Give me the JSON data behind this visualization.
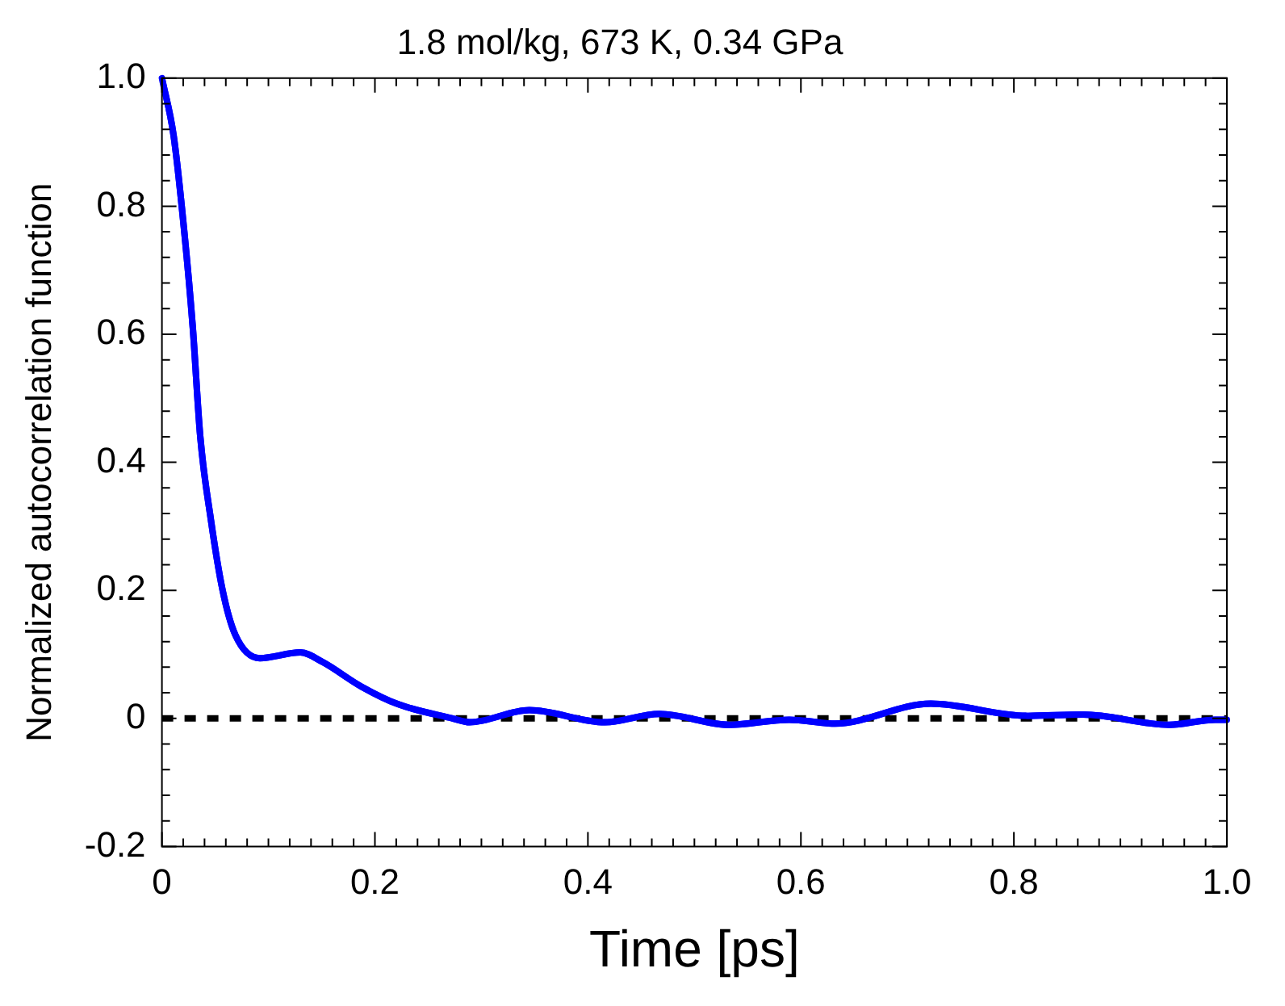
{
  "chart_data": {
    "type": "line",
    "title": "1.8 mol/kg, 673 K, 0.34 GPa",
    "xlabel": "Time [ps]",
    "ylabel": "Normalized autocorrelation function",
    "x": [
      0,
      0.011,
      0.021,
      0.029,
      0.036,
      0.046,
      0.057,
      0.069,
      0.092,
      0.13,
      0.151,
      0.187,
      0.222,
      0.273,
      0.289,
      0.345,
      0.416,
      0.467,
      0.533,
      0.589,
      0.632,
      0.722,
      0.813,
      0.865,
      0.946,
      0.989,
      1.0
    ],
    "series": [
      {
        "color": "#0000ff",
        "values": [
          1.0,
          0.91,
          0.76,
          0.61,
          0.44,
          0.31,
          0.2,
          0.13,
          0.094,
          0.103,
          0.088,
          0.05,
          0.022,
          0.0,
          -0.006,
          0.013,
          -0.006,
          0.007,
          -0.01,
          -0.002,
          -0.008,
          0.023,
          0.004,
          0.006,
          -0.01,
          -0.002,
          -0.002
        ]
      }
    ],
    "xlim": [
      0,
      1.0
    ],
    "ylim": [
      -0.2,
      1.0
    ],
    "xticks": [
      0,
      {
        "value": 0.02,
        "label": null
      },
      {
        "value": 0.04,
        "label": null
      },
      {
        "value": 0.06,
        "label": null
      },
      {
        "value": 0.08,
        "label": null
      },
      {
        "value": 0.1,
        "label": null
      },
      {
        "value": 0.12,
        "label": null
      },
      {
        "value": 0.14,
        "label": null
      },
      {
        "value": 0.16,
        "label": null
      },
      {
        "value": 0.18,
        "label": null
      },
      0.2,
      {
        "value": 0.22,
        "label": null
      },
      {
        "value": 0.24,
        "label": null
      },
      {
        "value": 0.26,
        "label": null
      },
      {
        "value": 0.28,
        "label": null
      },
      {
        "value": 0.3,
        "label": null
      },
      {
        "value": 0.32,
        "label": null
      },
      {
        "value": 0.34,
        "label": null
      },
      {
        "value": 0.36,
        "label": null
      },
      {
        "value": 0.38,
        "label": null
      },
      0.4,
      {
        "value": 0.42,
        "label": null
      },
      {
        "value": 0.44,
        "label": null
      },
      {
        "value": 0.46,
        "label": null
      },
      {
        "value": 0.48,
        "label": null
      },
      {
        "value": 0.5,
        "label": null
      },
      {
        "value": 0.52,
        "label": null
      },
      {
        "value": 0.54,
        "label": null
      },
      {
        "value": 0.56,
        "label": null
      },
      {
        "value": 0.58,
        "label": null
      },
      0.6,
      {
        "value": 0.62,
        "label": null
      },
      {
        "value": 0.64,
        "label": null
      },
      {
        "value": 0.66,
        "label": null
      },
      {
        "value": 0.68,
        "label": null
      },
      {
        "value": 0.7,
        "label": null
      },
      {
        "value": 0.72,
        "label": null
      },
      {
        "value": 0.74,
        "label": null
      },
      {
        "value": 0.76,
        "label": null
      },
      {
        "value": 0.78,
        "label": null
      },
      0.8,
      {
        "value": 0.82,
        "label": null
      },
      {
        "value": 0.84,
        "label": null
      },
      {
        "value": 0.86,
        "label": null
      },
      {
        "value": 0.88,
        "label": null
      },
      {
        "value": 0.9,
        "label": null
      },
      {
        "value": 0.92,
        "label": null
      },
      {
        "value": 0.94,
        "label": null
      },
      {
        "value": 0.96,
        "label": null
      },
      {
        "value": 0.98,
        "label": null
      },
      {
        "value": 1.0,
        "label": "1.0"
      }
    ],
    "yticks": [
      -0.2,
      {
        "value": -0.16,
        "label": null
      },
      {
        "value": -0.12,
        "label": null
      },
      {
        "value": -0.08,
        "label": null
      },
      {
        "value": -0.04,
        "label": null
      },
      0,
      {
        "value": 0.04,
        "label": null
      },
      {
        "value": 0.08,
        "label": null
      },
      {
        "value": 0.12,
        "label": null
      },
      {
        "value": 0.16,
        "label": null
      },
      0.2,
      {
        "value": 0.24,
        "label": null
      },
      {
        "value": 0.28,
        "label": null
      },
      {
        "value": 0.32,
        "label": null
      },
      {
        "value": 0.36,
        "label": null
      },
      0.4,
      {
        "value": 0.44,
        "label": null
      },
      {
        "value": 0.48,
        "label": null
      },
      {
        "value": 0.52,
        "label": null
      },
      {
        "value": 0.56,
        "label": null
      },
      0.6,
      {
        "value": 0.64,
        "label": null
      },
      {
        "value": 0.68,
        "label": null
      },
      {
        "value": 0.72,
        "label": null
      },
      {
        "value": 0.76,
        "label": null
      },
      0.8,
      {
        "value": 0.84,
        "label": null
      },
      {
        "value": 0.88,
        "label": null
      },
      {
        "value": 0.92,
        "label": null
      },
      {
        "value": 0.96,
        "label": null
      },
      {
        "value": 1.0,
        "label": "1.0"
      }
    ],
    "ref_lines": [
      {
        "axis": "y",
        "value": 0,
        "color": "#000000",
        "line_style": "dotted"
      }
    ],
    "grid": false,
    "legend": false,
    "marker": "none",
    "line_style": "solid"
  }
}
